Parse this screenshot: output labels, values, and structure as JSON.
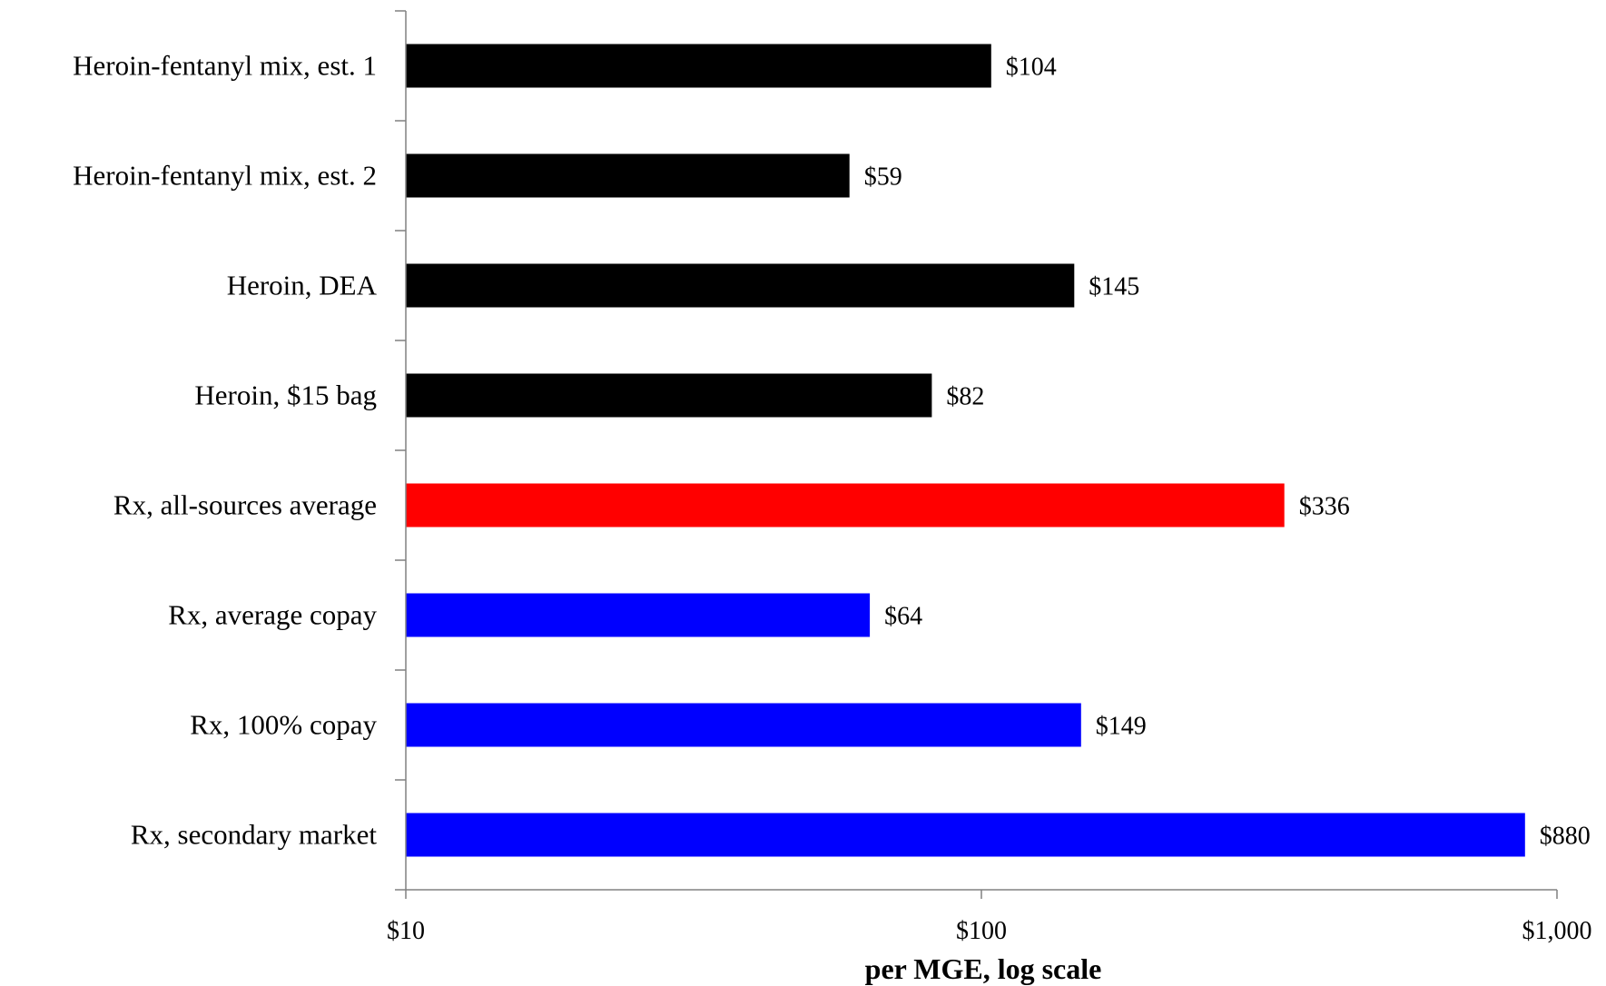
{
  "chart_data": {
    "type": "bar",
    "orientation": "horizontal",
    "categories": [
      "Heroin-fentanyl mix, est. 1",
      "Heroin-fentanyl mix, est. 2",
      "Heroin, DEA",
      "Heroin, $15 bag",
      "Rx, all-sources average",
      "Rx, average copay",
      "Rx, 100% copay",
      "Rx, secondary market"
    ],
    "values": [
      104,
      59,
      145,
      82,
      336,
      64,
      149,
      880
    ],
    "data_labels": [
      "$104",
      "$59",
      "$145",
      "$82",
      "$336",
      "$64",
      "$149",
      "$880"
    ],
    "bar_colors": [
      "#000000",
      "#000000",
      "#000000",
      "#000000",
      "#ff0000",
      "#0000ff",
      "#0000ff",
      "#0000ff"
    ],
    "xscale": "log",
    "xlim": [
      10,
      1000
    ],
    "xticks": [
      10,
      100,
      1000
    ],
    "xtick_labels": [
      "$10",
      "$100",
      "$1,000"
    ],
    "xlabel": "per MGE, log scale",
    "title": "",
    "ylabel": "",
    "grid": false,
    "legend": "none"
  }
}
